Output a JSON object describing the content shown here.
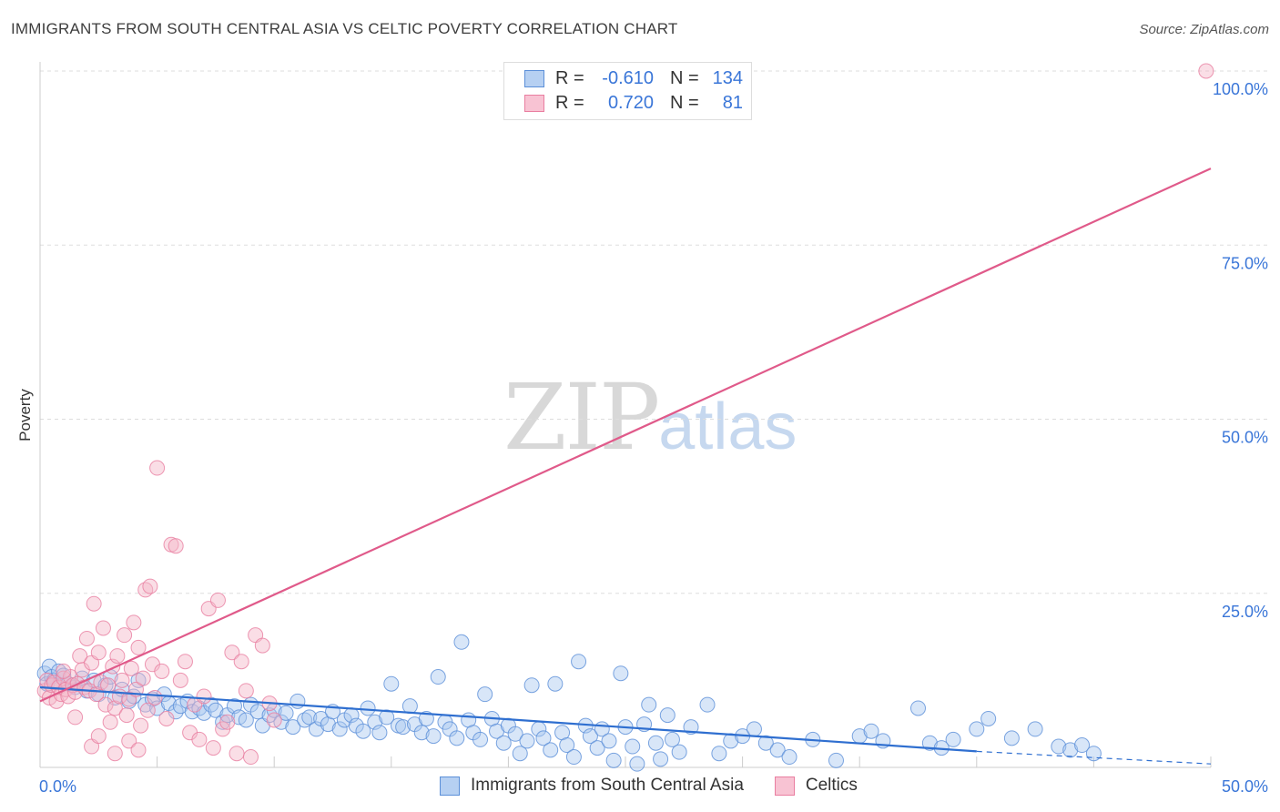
{
  "header": {
    "title": "IMMIGRANTS FROM SOUTH CENTRAL ASIA VS CELTIC POVERTY CORRELATION CHART",
    "source": "Source: ZipAtlas.com"
  },
  "watermark": {
    "zip": "ZIP",
    "atlas": "atlas"
  },
  "legend": {
    "rows": [
      {
        "r_label": "R =",
        "r_value": "-0.610",
        "n_label": "N =",
        "n_value": "134"
      },
      {
        "r_label": "R =",
        "r_value": "0.720",
        "n_label": "N =",
        "n_value": "81"
      }
    ]
  },
  "bottom_legend": {
    "items": [
      {
        "label": "Immigrants from South Central Asia"
      },
      {
        "label": "Celtics"
      }
    ]
  },
  "colors": {
    "blue_fill": "#a9c8f0",
    "blue_stroke": "#5b8fd8",
    "blue_line": "#2f6fd0",
    "pink_fill": "#f5b5c8",
    "pink_stroke": "#e97ea0",
    "pink_line": "#e05a8a",
    "axis_label": "#3a76d8",
    "grid": "#dddddd"
  },
  "chart_data": {
    "type": "scatter",
    "title": "IMMIGRANTS FROM SOUTH CENTRAL ASIA VS CELTIC POVERTY CORRELATION CHART",
    "xlabel": "",
    "ylabel": "Poverty",
    "xlim": [
      0,
      50
    ],
    "ylim": [
      0,
      100
    ],
    "x_tick_labels": [
      "0.0%",
      "50.0%"
    ],
    "y_tick_labels": [
      "25.0%",
      "50.0%",
      "75.0%",
      "100.0%"
    ],
    "y_ticks": [
      25,
      50,
      75,
      100
    ],
    "grid": true,
    "legend_position": "top-center",
    "series": [
      {
        "name": "Immigrants from South Central Asia",
        "color": "#a9c8f0",
        "trend": {
          "x": [
            0.0,
            40.0
          ],
          "y": [
            11.5,
            2.3
          ],
          "dashed_extension": {
            "x": [
              40.0,
              50.0
            ],
            "y": [
              2.3,
              0.5
            ]
          }
        },
        "points": [
          [
            0.2,
            13.5
          ],
          [
            0.3,
            12.0
          ],
          [
            0.4,
            14.5
          ],
          [
            0.5,
            13.0
          ],
          [
            0.6,
            12.5
          ],
          [
            0.8,
            13.8
          ],
          [
            1.0,
            13.2
          ],
          [
            1.2,
            12.0
          ],
          [
            1.5,
            11.5
          ],
          [
            1.8,
            12.8
          ],
          [
            2.0,
            11.0
          ],
          [
            2.3,
            12.5
          ],
          [
            2.5,
            10.5
          ],
          [
            2.8,
            11.8
          ],
          [
            3.0,
            13.0
          ],
          [
            3.2,
            10.0
          ],
          [
            3.5,
            11.2
          ],
          [
            3.8,
            9.5
          ],
          [
            4.0,
            10.2
          ],
          [
            4.2,
            12.5
          ],
          [
            4.5,
            9.0
          ],
          [
            4.8,
            9.8
          ],
          [
            5.0,
            8.5
          ],
          [
            5.3,
            10.5
          ],
          [
            5.5,
            9.2
          ],
          [
            5.8,
            8.0
          ],
          [
            6.0,
            8.8
          ],
          [
            6.3,
            9.5
          ],
          [
            6.5,
            8.0
          ],
          [
            6.8,
            8.5
          ],
          [
            7.0,
            7.8
          ],
          [
            7.3,
            9.0
          ],
          [
            7.5,
            8.2
          ],
          [
            7.8,
            6.5
          ],
          [
            8.0,
            7.5
          ],
          [
            8.3,
            8.8
          ],
          [
            8.5,
            7.2
          ],
          [
            8.8,
            6.8
          ],
          [
            9.0,
            9.0
          ],
          [
            9.3,
            8.0
          ],
          [
            9.5,
            6.0
          ],
          [
            9.8,
            7.5
          ],
          [
            10.0,
            8.2
          ],
          [
            10.3,
            6.5
          ],
          [
            10.5,
            7.8
          ],
          [
            10.8,
            5.8
          ],
          [
            11.0,
            9.5
          ],
          [
            11.3,
            6.8
          ],
          [
            11.5,
            7.2
          ],
          [
            11.8,
            5.5
          ],
          [
            12.0,
            7.0
          ],
          [
            12.3,
            6.2
          ],
          [
            12.5,
            8.0
          ],
          [
            12.8,
            5.5
          ],
          [
            13.0,
            6.8
          ],
          [
            13.3,
            7.5
          ],
          [
            13.5,
            6.0
          ],
          [
            13.8,
            5.2
          ],
          [
            14.0,
            8.5
          ],
          [
            14.3,
            6.5
          ],
          [
            14.5,
            5.0
          ],
          [
            14.8,
            7.2
          ],
          [
            15.0,
            12.0
          ],
          [
            15.3,
            6.0
          ],
          [
            15.5,
            5.8
          ],
          [
            15.8,
            8.8
          ],
          [
            16.0,
            6.2
          ],
          [
            16.3,
            5.0
          ],
          [
            16.5,
            7.0
          ],
          [
            16.8,
            4.5
          ],
          [
            17.0,
            13.0
          ],
          [
            17.3,
            6.5
          ],
          [
            17.5,
            5.5
          ],
          [
            17.8,
            4.2
          ],
          [
            18.0,
            18.0
          ],
          [
            18.3,
            6.8
          ],
          [
            18.5,
            5.0
          ],
          [
            18.8,
            4.0
          ],
          [
            19.0,
            10.5
          ],
          [
            19.3,
            7.0
          ],
          [
            19.5,
            5.2
          ],
          [
            19.8,
            3.5
          ],
          [
            20.0,
            6.0
          ],
          [
            20.3,
            4.8
          ],
          [
            20.5,
            2.0
          ],
          [
            20.8,
            3.8
          ],
          [
            21.0,
            11.8
          ],
          [
            21.3,
            5.5
          ],
          [
            21.5,
            4.2
          ],
          [
            21.8,
            2.5
          ],
          [
            22.0,
            12.0
          ],
          [
            22.3,
            5.0
          ],
          [
            22.5,
            3.2
          ],
          [
            22.8,
            1.5
          ],
          [
            23.0,
            15.2
          ],
          [
            23.3,
            6.0
          ],
          [
            23.5,
            4.5
          ],
          [
            23.8,
            2.8
          ],
          [
            24.0,
            5.5
          ],
          [
            24.3,
            3.8
          ],
          [
            24.5,
            1.0
          ],
          [
            24.8,
            13.5
          ],
          [
            25.0,
            5.8
          ],
          [
            25.3,
            3.0
          ],
          [
            25.5,
            0.5
          ],
          [
            25.8,
            6.2
          ],
          [
            26.0,
            9.0
          ],
          [
            26.3,
            3.5
          ],
          [
            26.5,
            1.2
          ],
          [
            26.8,
            7.5
          ],
          [
            27.0,
            4.0
          ],
          [
            27.3,
            2.2
          ],
          [
            27.8,
            5.8
          ],
          [
            28.5,
            9.0
          ],
          [
            29.0,
            2.0
          ],
          [
            29.5,
            3.8
          ],
          [
            30.0,
            4.5
          ],
          [
            30.5,
            5.5
          ],
          [
            31.0,
            3.5
          ],
          [
            31.5,
            2.5
          ],
          [
            32.0,
            1.5
          ],
          [
            33.0,
            4.0
          ],
          [
            34.0,
            1.0
          ],
          [
            35.0,
            4.5
          ],
          [
            35.5,
            5.2
          ],
          [
            36.0,
            3.8
          ],
          [
            37.5,
            8.5
          ],
          [
            38.0,
            3.5
          ],
          [
            38.5,
            2.8
          ],
          [
            39.0,
            4.0
          ],
          [
            40.0,
            5.5
          ],
          [
            40.5,
            7.0
          ],
          [
            41.5,
            4.2
          ],
          [
            42.5,
            5.5
          ],
          [
            43.5,
            3.0
          ],
          [
            44.0,
            2.5
          ],
          [
            44.5,
            3.2
          ],
          [
            45.0,
            2.0
          ]
        ]
      },
      {
        "name": "Celtics",
        "color": "#f5b5c8",
        "trend": {
          "x": [
            0.0,
            50.0
          ],
          "y": [
            9.5,
            86.0
          ]
        },
        "points": [
          [
            0.2,
            11.0
          ],
          [
            0.3,
            12.5
          ],
          [
            0.4,
            10.0
          ],
          [
            0.5,
            11.8
          ],
          [
            0.6,
            12.2
          ],
          [
            0.7,
            9.5
          ],
          [
            0.8,
            11.5
          ],
          [
            0.9,
            10.5
          ],
          [
            1.0,
            12.8
          ],
          [
            1.1,
            11.2
          ],
          [
            1.2,
            10.2
          ],
          [
            1.3,
            13.0
          ],
          [
            1.4,
            11.8
          ],
          [
            1.5,
            10.8
          ],
          [
            1.6,
            12.0
          ],
          [
            1.7,
            16.0
          ],
          [
            1.8,
            14.0
          ],
          [
            1.9,
            11.5
          ],
          [
            2.0,
            18.5
          ],
          [
            2.1,
            11.0
          ],
          [
            2.2,
            15.0
          ],
          [
            2.3,
            23.5
          ],
          [
            2.4,
            10.5
          ],
          [
            2.5,
            16.5
          ],
          [
            2.6,
            12.2
          ],
          [
            2.7,
            20.0
          ],
          [
            2.8,
            9.0
          ],
          [
            2.9,
            11.8
          ],
          [
            3.0,
            6.5
          ],
          [
            3.1,
            14.5
          ],
          [
            3.2,
            8.5
          ],
          [
            3.3,
            16.0
          ],
          [
            3.4,
            10.2
          ],
          [
            3.5,
            12.5
          ],
          [
            3.6,
            19.0
          ],
          [
            3.7,
            7.5
          ],
          [
            3.8,
            9.8
          ],
          [
            3.9,
            14.2
          ],
          [
            4.0,
            20.8
          ],
          [
            4.1,
            11.2
          ],
          [
            4.2,
            17.2
          ],
          [
            4.3,
            6.0
          ],
          [
            4.4,
            12.8
          ],
          [
            4.5,
            25.5
          ],
          [
            4.6,
            8.2
          ],
          [
            4.7,
            26.0
          ],
          [
            4.8,
            14.8
          ],
          [
            4.9,
            10.0
          ],
          [
            5.0,
            43.0
          ],
          [
            5.2,
            13.8
          ],
          [
            5.4,
            7.0
          ],
          [
            5.6,
            32.0
          ],
          [
            5.8,
            31.8
          ],
          [
            6.0,
            12.5
          ],
          [
            6.2,
            15.2
          ],
          [
            6.4,
            5.0
          ],
          [
            6.6,
            9.0
          ],
          [
            6.8,
            4.0
          ],
          [
            7.0,
            10.2
          ],
          [
            7.2,
            22.8
          ],
          [
            7.4,
            2.8
          ],
          [
            7.6,
            24.0
          ],
          [
            7.8,
            5.5
          ],
          [
            8.0,
            6.5
          ],
          [
            8.2,
            16.5
          ],
          [
            8.4,
            2.0
          ],
          [
            8.6,
            15.2
          ],
          [
            8.8,
            11.0
          ],
          [
            9.0,
            1.5
          ],
          [
            9.2,
            19.0
          ],
          [
            9.5,
            17.5
          ],
          [
            9.8,
            9.2
          ],
          [
            10.0,
            6.8
          ],
          [
            2.2,
            3.0
          ],
          [
            3.2,
            2.0
          ],
          [
            1.5,
            7.2
          ],
          [
            2.5,
            4.5
          ],
          [
            3.8,
            3.8
          ],
          [
            4.2,
            2.5
          ],
          [
            1.0,
            13.8
          ],
          [
            49.8,
            100.0
          ]
        ]
      }
    ]
  }
}
